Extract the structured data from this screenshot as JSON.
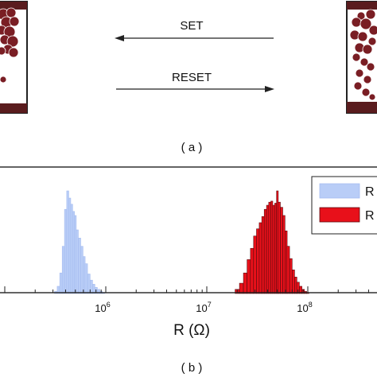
{
  "panel_a": {
    "label": "( a )",
    "set_label": "SET",
    "reset_label": "RESET",
    "colors": {
      "filament": "#7a1e24",
      "electrode": "#5a1c1e"
    }
  },
  "panel_b": {
    "label": "( b )"
  },
  "chart_data": {
    "type": "bar",
    "title": "",
    "xlabel": "R (Ω)",
    "ylabel": "",
    "x_scale": "log",
    "xlim": [
      100000,
      1000000000
    ],
    "x_ticks": [
      {
        "value": 1000000,
        "base": "10",
        "exp": "6"
      },
      {
        "value": 10000000,
        "base": "10",
        "exp": "7"
      },
      {
        "value": 100000000,
        "base": "10",
        "exp": "8"
      }
    ],
    "ylim": [
      0,
      1
    ],
    "grid": false,
    "legend_position": "top-right",
    "series": [
      {
        "name": "R",
        "color": "#b9cdf7",
        "edge": "#a6bdf0",
        "x": [
          320000,
          340000,
          360000,
          380000,
          400000,
          420000,
          440000,
          460000,
          480000,
          500000,
          520000,
          550000,
          580000,
          610000,
          640000,
          680000,
          720000,
          760000,
          800000,
          850000,
          900000,
          950000
        ],
        "values": [
          0.02,
          0.07,
          0.2,
          0.46,
          0.82,
          1.0,
          0.93,
          0.87,
          0.8,
          0.76,
          0.62,
          0.54,
          0.46,
          0.36,
          0.29,
          0.19,
          0.13,
          0.09,
          0.06,
          0.04,
          0.02,
          0.01
        ]
      },
      {
        "name": "R",
        "color": "#e8101a",
        "edge": "#5c0a0e",
        "x": [
          20000000,
          22000000,
          24000000,
          26000000,
          28000000,
          30000000,
          32000000,
          34000000,
          36000000,
          38000000,
          40000000,
          42000000,
          44000000,
          46000000,
          48000000,
          50000000,
          52000000,
          55000000,
          58000000,
          61000000,
          64000000,
          68000000,
          72000000,
          76000000,
          80000000,
          85000000,
          90000000,
          95000000,
          100000000
        ],
        "values": [
          0.04,
          0.1,
          0.2,
          0.33,
          0.44,
          0.56,
          0.63,
          0.69,
          0.75,
          0.82,
          0.86,
          0.89,
          0.9,
          0.86,
          0.88,
          1.0,
          0.89,
          0.84,
          0.76,
          0.61,
          0.46,
          0.34,
          0.23,
          0.16,
          0.11,
          0.07,
          0.04,
          0.02,
          0.01
        ]
      }
    ]
  }
}
